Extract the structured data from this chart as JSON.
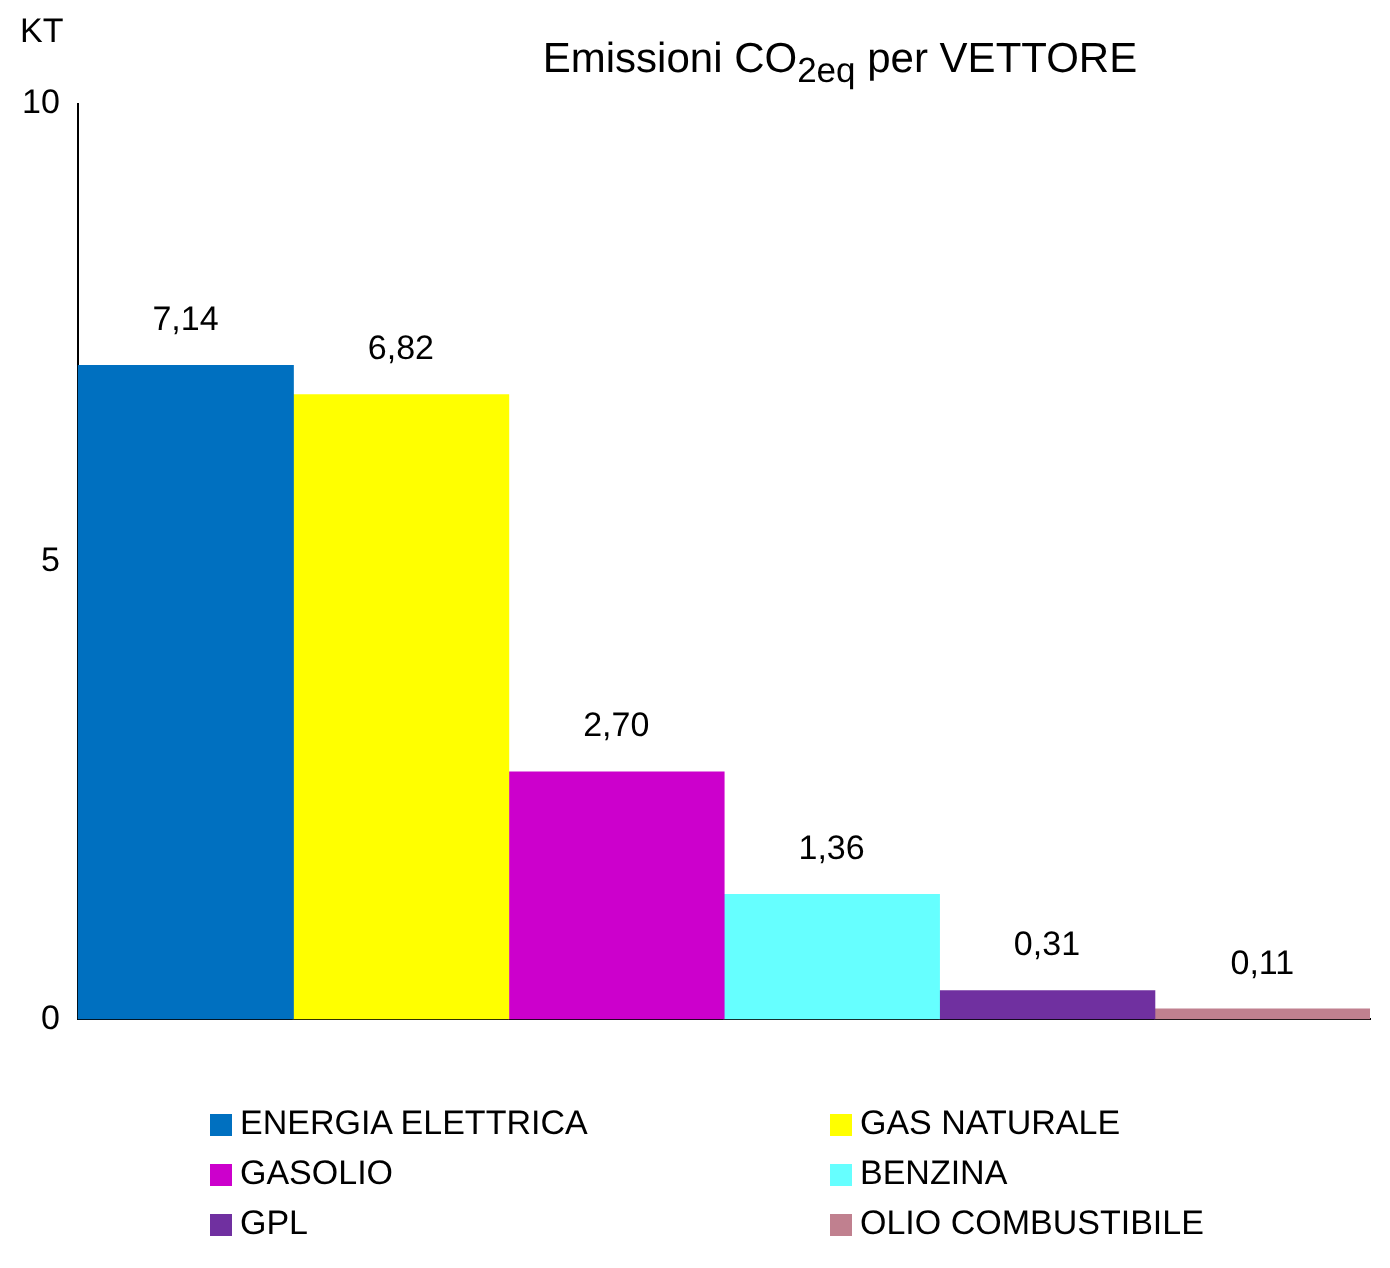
{
  "chart_data": {
    "type": "bar",
    "title": "Emissioni CO$_{2eq}$ per VETTORE",
    "ylabel": "KT",
    "categories": [
      null
    ],
    "ylim": [
      0,
      10
    ],
    "yticks": [
      0,
      5,
      10
    ],
    "grid": false,
    "legend": "bottom",
    "series": [
      {
        "name": "ENERGIA ELETTRICA",
        "color": "#0070c0",
        "values": [
          7.14
        ],
        "value_labels": [
          "7,14"
        ]
      },
      {
        "name": "GAS NATURALE",
        "color": "#ffff00",
        "values": [
          6.82
        ],
        "value_labels": [
          "6,82"
        ]
      },
      {
        "name": "GASOLIO",
        "color": "#cc00cc",
        "values": [
          2.7
        ],
        "value_labels": [
          "2,70"
        ]
      },
      {
        "name": "BENZINA",
        "color": "#66ffff",
        "values": [
          1.36
        ],
        "value_labels": [
          "1,36"
        ]
      },
      {
        "name": "GPL",
        "color": "#7030a0",
        "values": [
          0.31
        ],
        "value_labels": [
          "0,31"
        ]
      },
      {
        "name": "OLIO COMBUSTIBILE",
        "color": "#c0808f",
        "values": [
          0.11
        ],
        "value_labels": [
          "0,11"
        ]
      }
    ]
  }
}
